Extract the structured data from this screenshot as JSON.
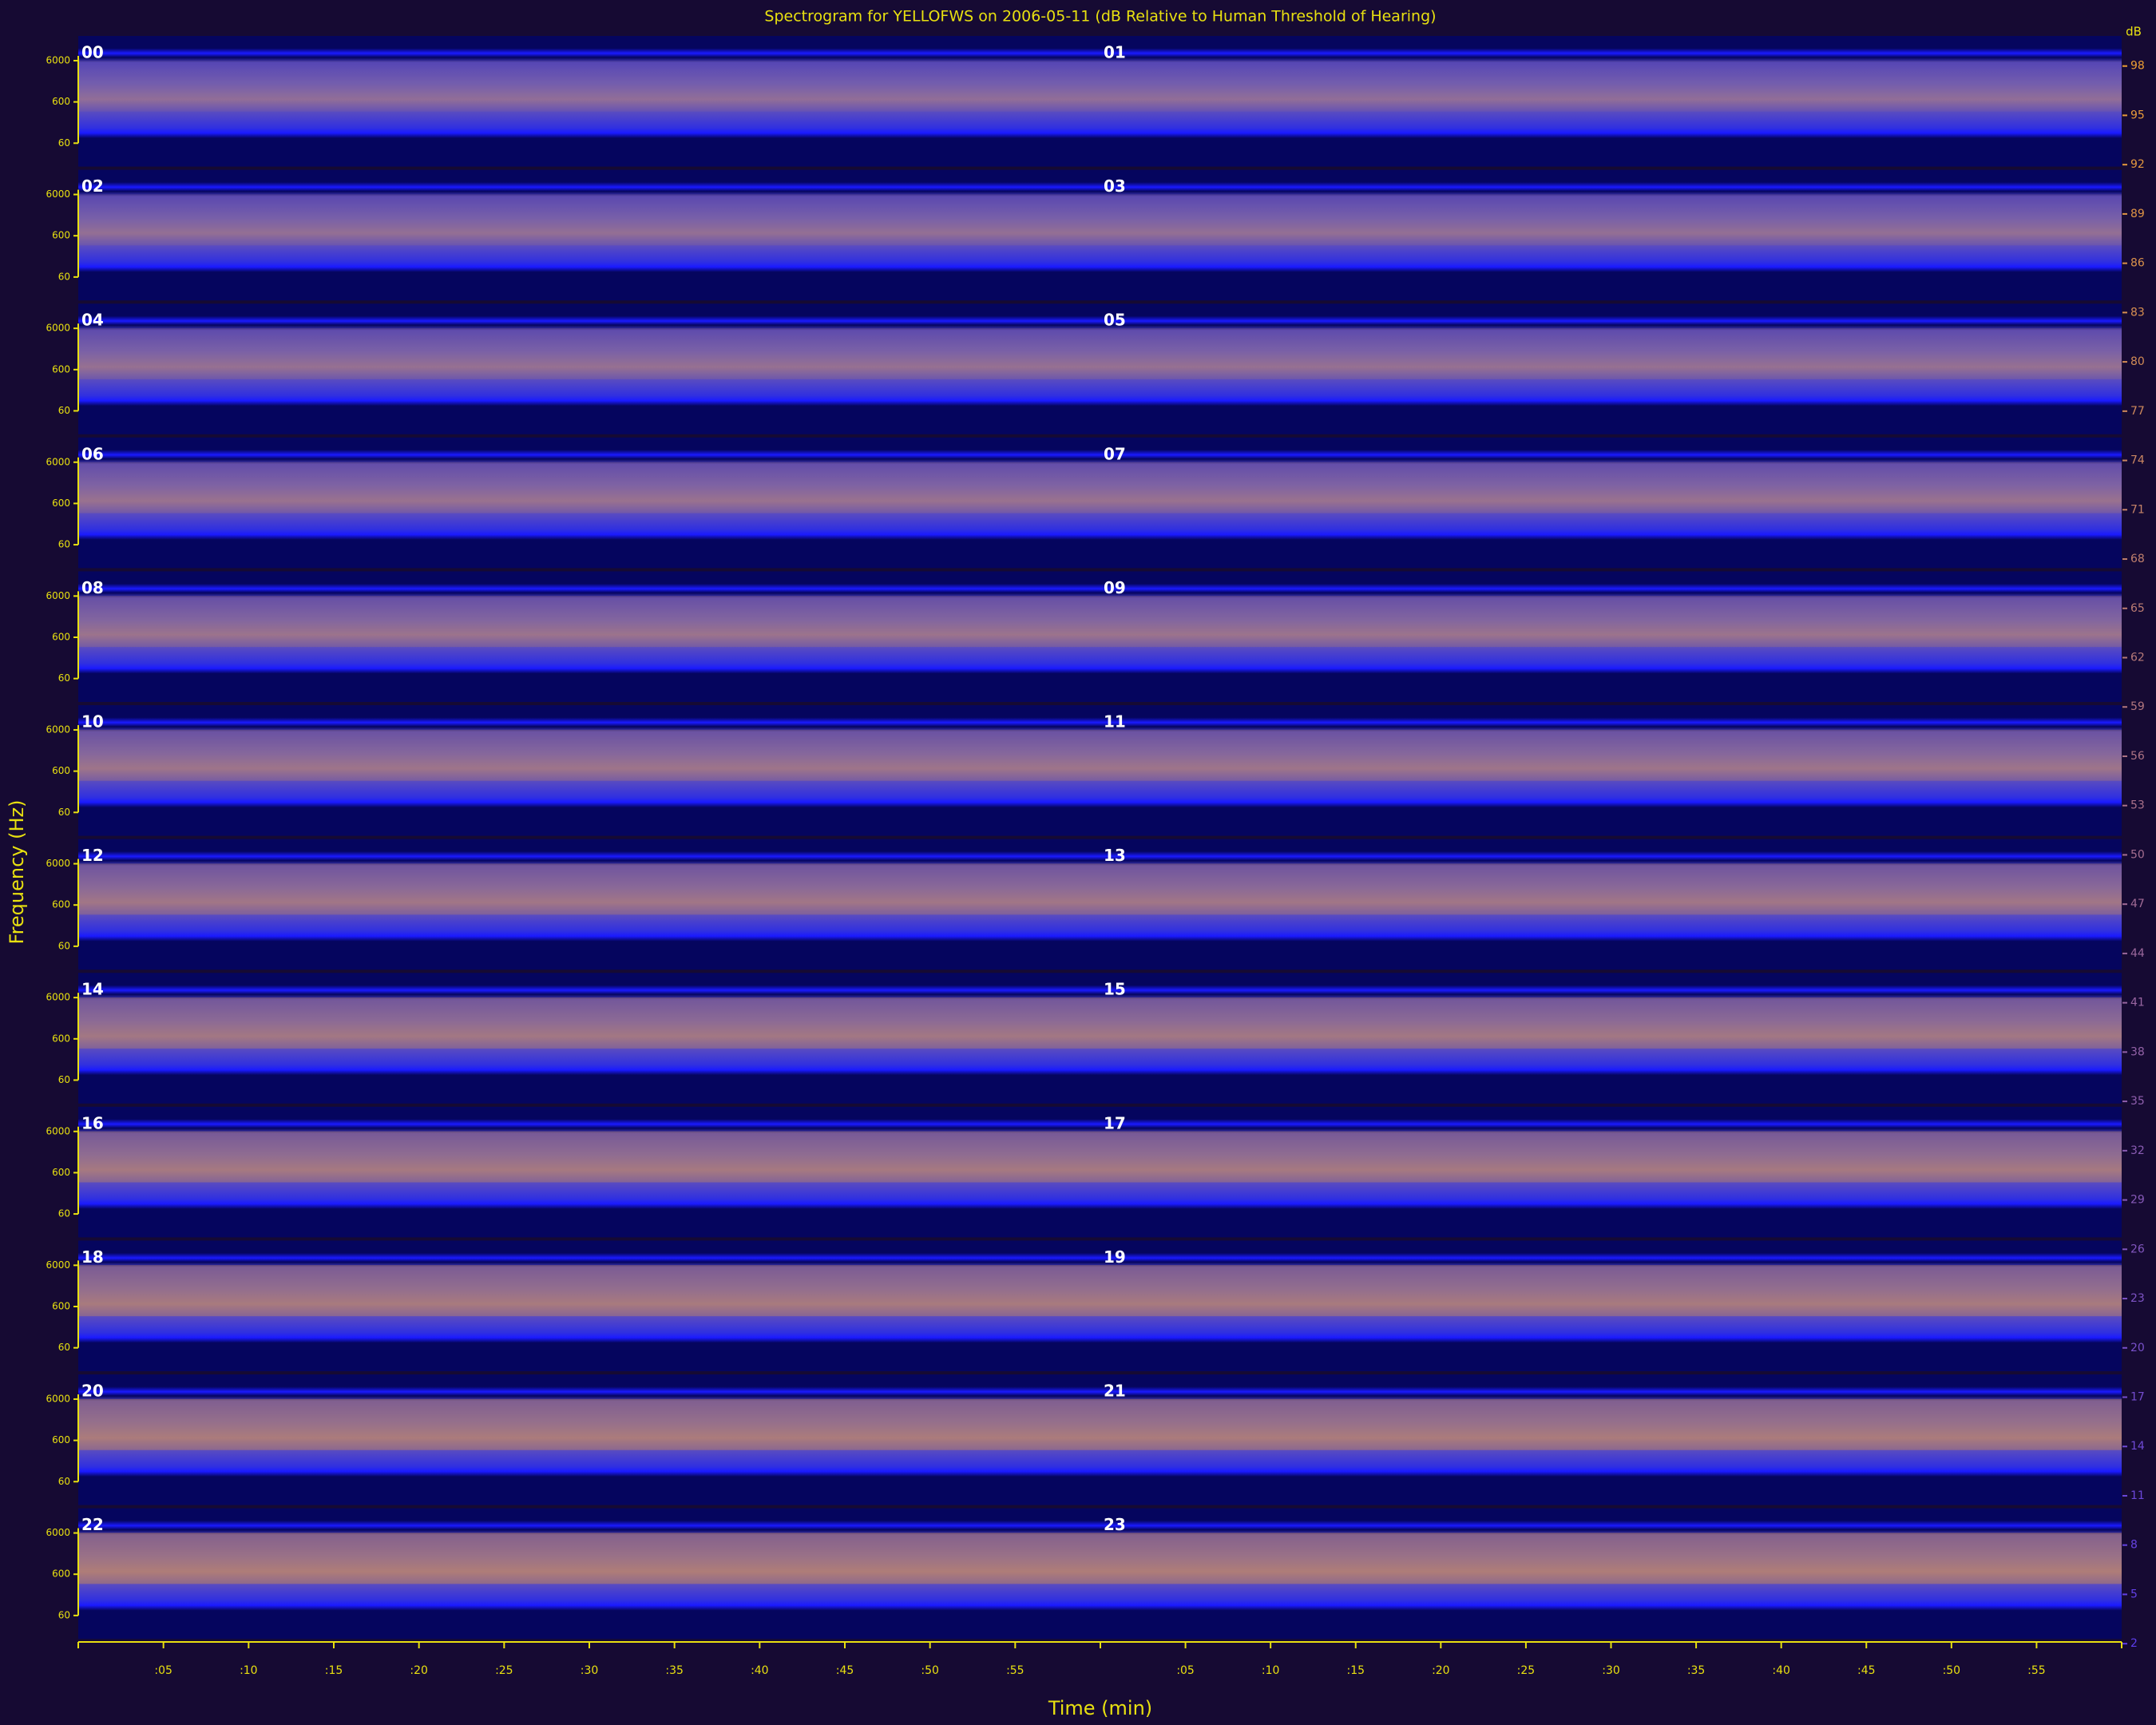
{
  "chart_data": {
    "type": "spectrogram",
    "title": "Spectrogram for YELLOFWS on 2006-05-11 (dB Relative to Human Threshold of Hearing)",
    "xlabel": "Time (min)",
    "ylabel": "Frequency (Hz)",
    "panels": [
      "00",
      "01",
      "02",
      "03",
      "04",
      "05",
      "06",
      "07",
      "08",
      "09",
      "10",
      "11",
      "12",
      "13",
      "14",
      "15",
      "16",
      "17",
      "18",
      "19",
      "20",
      "21",
      "22",
      "23"
    ],
    "xlim": [
      0,
      60
    ],
    "xticks": [
      {
        "value": 5,
        "label": ":05"
      },
      {
        "value": 10,
        "label": ":10"
      },
      {
        "value": 15,
        "label": ":15"
      },
      {
        "value": 20,
        "label": ":20"
      },
      {
        "value": 25,
        "label": ":25"
      },
      {
        "value": 30,
        "label": ":30"
      },
      {
        "value": 35,
        "label": ":35"
      },
      {
        "value": 40,
        "label": ":40"
      },
      {
        "value": 45,
        "label": ":45"
      },
      {
        "value": 50,
        "label": ":50"
      },
      {
        "value": 55,
        "label": ":55"
      }
    ],
    "ylim": [
      40,
      12000
    ],
    "log_y": true,
    "yticks": [
      60,
      600,
      6000
    ],
    "colorbar_label": "dB",
    "zlim": [
      0,
      100
    ],
    "zticks": [
      98,
      95,
      92,
      89,
      86,
      83,
      80,
      77,
      74,
      71,
      68,
      65,
      62,
      59,
      56,
      53,
      50,
      47,
      44,
      41,
      38,
      35,
      32,
      29,
      26,
      23,
      20,
      17,
      14,
      11,
      8,
      5,
      2
    ],
    "colors": {
      "background": "#160a33",
      "text": "#e8e010",
      "low": "#05055e",
      "mid": "#1a1aff",
      "high": "#f0a030",
      "scale_low": "#5a3cf0"
    }
  }
}
